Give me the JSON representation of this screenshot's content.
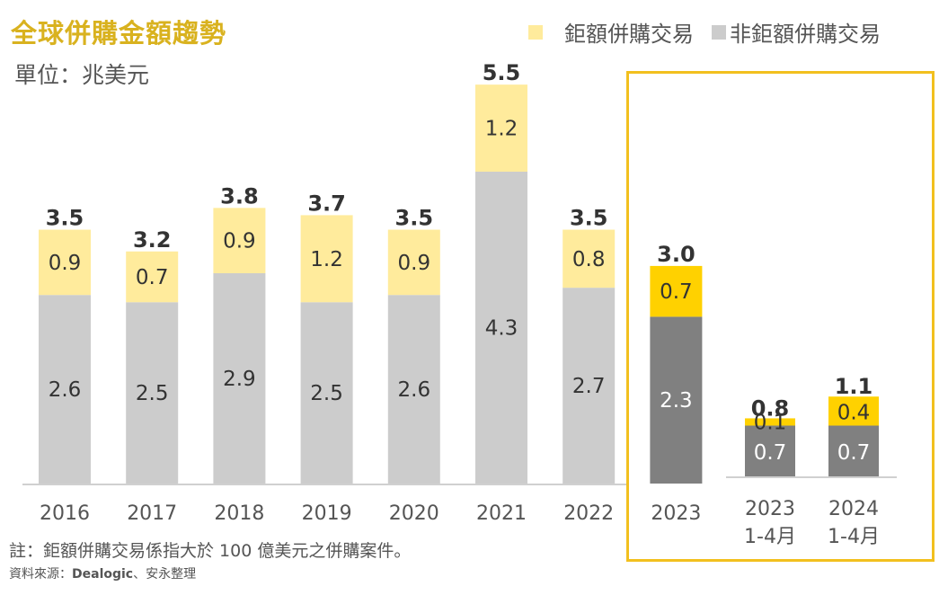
{
  "title": "全球併購金額趨勢",
  "unit_label": "單位：兆美元",
  "note": "註：鉅額併購交易係指大於 100 億美元之併購案件。",
  "source_label": "資料來源：",
  "source_name": "Dealogic",
  "source_suffix": "、安永整理",
  "colors": {
    "title": "#d9b21f",
    "mega_light": "#ffeb9c",
    "non_mega_light": "#cccccc",
    "mega_dark": "#ffd100",
    "non_mega_dark": "#808080",
    "highlight_border": "#f2c01e",
    "axis": "#d0d0d0",
    "text": "#333333"
  },
  "chart_data": {
    "type": "bar",
    "stacked": true,
    "title": "全球併購金額趨勢",
    "ylabel": "單位：兆美元",
    "xlabel": "",
    "legend": {
      "position": "top-right",
      "entries": [
        "鉅額併購交易",
        "非鉅額併購交易"
      ]
    },
    "grid": false,
    "annual": {
      "categories": [
        "2016",
        "2017",
        "2018",
        "2019",
        "2020",
        "2021",
        "2022",
        "2023"
      ],
      "series": [
        {
          "name": "非鉅額併購交易",
          "values": [
            2.6,
            2.5,
            2.9,
            2.5,
            2.6,
            4.3,
            2.7,
            2.3
          ]
        },
        {
          "name": "鉅額併購交易",
          "values": [
            0.9,
            0.7,
            0.9,
            1.2,
            0.9,
            1.2,
            0.8,
            0.7
          ]
        }
      ],
      "totals": [
        "3.5",
        "3.2",
        "3.8",
        "3.7",
        "3.5",
        "5.5",
        "3.5",
        "3.0"
      ],
      "highlighted": [
        "2023"
      ],
      "ylim": [
        0,
        5.5
      ]
    },
    "year_to_date": {
      "categories": [
        [
          "2023",
          "1-4月"
        ],
        [
          "2024",
          "1-4月"
        ]
      ],
      "series": [
        {
          "name": "非鉅額併購交易",
          "values": [
            0.7,
            0.7
          ]
        },
        {
          "name": "鉅額併購交易",
          "values": [
            0.1,
            0.4
          ]
        }
      ],
      "totals": [
        "0.8",
        "1.1"
      ],
      "highlighted": true
    }
  }
}
